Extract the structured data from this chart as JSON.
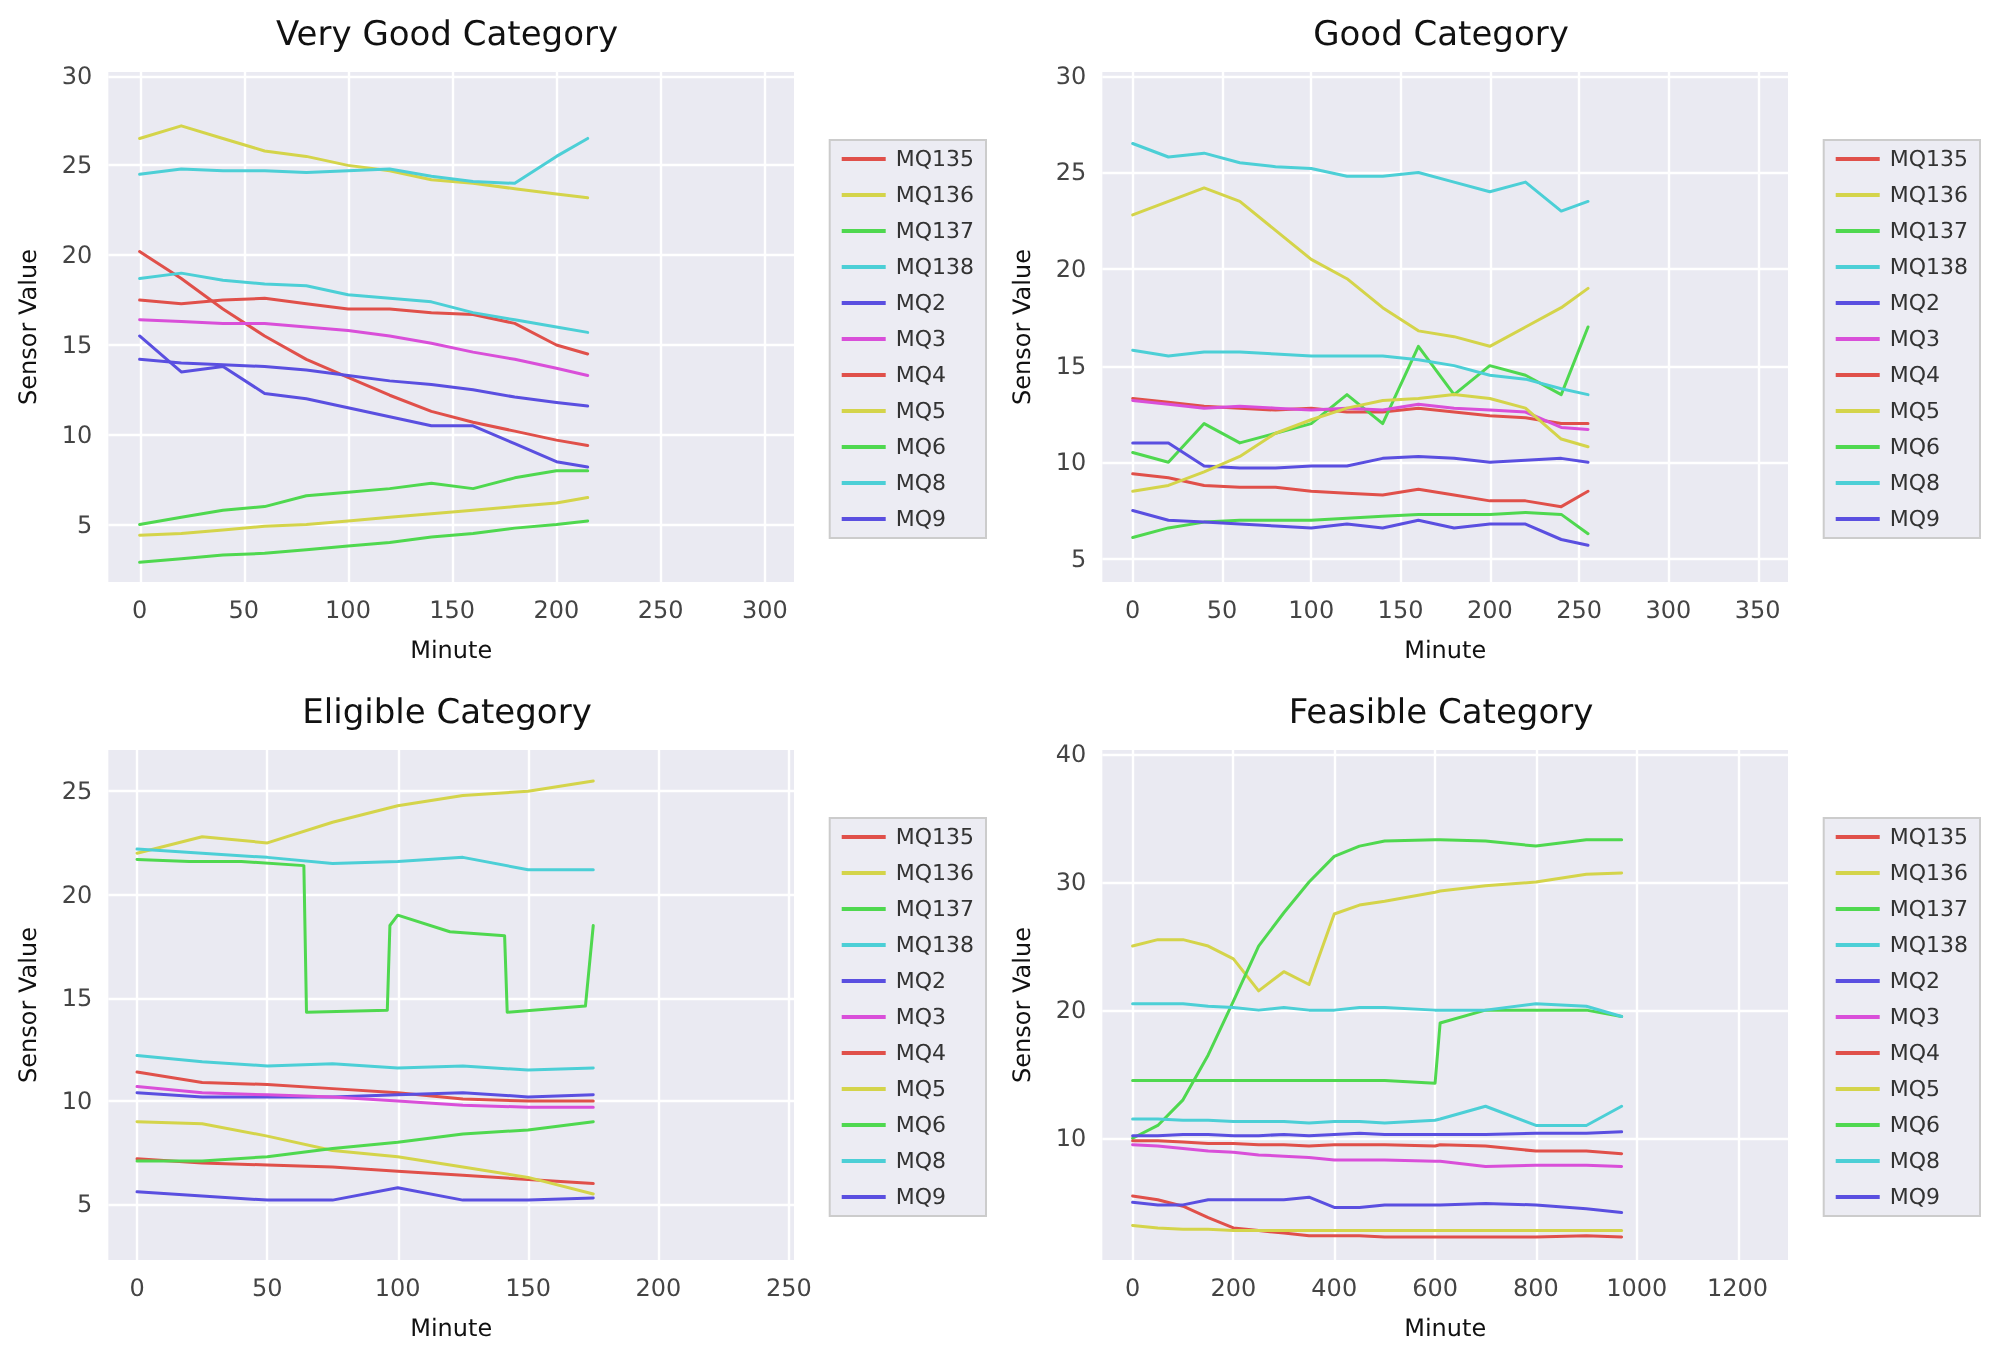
{
  "chart_data": [
    {
      "type": "line",
      "title": "Very Good Category",
      "xlabel": "Minute",
      "ylabel": "Sensor Value",
      "xlim": [
        -15,
        314
      ],
      "xticks": [
        0,
        50,
        100,
        150,
        200,
        250,
        300
      ],
      "ylim": [
        1.8,
        30.2
      ],
      "yticks": [
        5,
        10,
        15,
        20,
        25,
        30
      ],
      "grid": true,
      "legend": "right",
      "x": [
        0,
        20,
        40,
        60,
        80,
        100,
        120,
        140,
        160,
        180,
        200,
        215
      ],
      "series": [
        {
          "name": "MQ135",
          "color": "#e0504a",
          "values": [
            20.2,
            18.7,
            17,
            15.5,
            14.2,
            13.2,
            12.2,
            11.3,
            10.7,
            10.2,
            9.7,
            9.4
          ]
        },
        {
          "name": "MQ136",
          "color": "#d4d44a",
          "values": [
            26.5,
            27.2,
            26.5,
            25.8,
            25.5,
            25,
            24.7,
            24.2,
            24,
            23.7,
            23.4,
            23.2
          ]
        },
        {
          "name": "MQ137",
          "color": "#4fd84f",
          "values": [
            2.9,
            3.1,
            3.3,
            3.4,
            3.6,
            3.8,
            4,
            4.3,
            4.5,
            4.8,
            5,
            5.2
          ]
        },
        {
          "name": "MQ138",
          "color": "#4ccfd6",
          "values": [
            24.5,
            24.8,
            24.7,
            24.7,
            24.6,
            24.7,
            24.8,
            24.4,
            24.1,
            24,
            25.5,
            26.5
          ]
        },
        {
          "name": "MQ2",
          "color": "#5a4fe0",
          "values": [
            14.2,
            14,
            13.9,
            13.8,
            13.6,
            13.3,
            13,
            12.8,
            12.5,
            12.1,
            11.8,
            11.6
          ]
        },
        {
          "name": "MQ3",
          "color": "#d94fd9",
          "values": [
            16.4,
            16.3,
            16.2,
            16.2,
            16,
            15.8,
            15.5,
            15.1,
            14.6,
            14.2,
            13.7,
            13.3
          ]
        },
        {
          "name": "MQ4",
          "color": "#e0504a",
          "values": [
            17.5,
            17.3,
            17.5,
            17.6,
            17.3,
            17,
            17,
            16.8,
            16.7,
            16.2,
            15,
            14.5
          ]
        },
        {
          "name": "MQ5",
          "color": "#d4d44a",
          "values": [
            4.4,
            4.5,
            4.7,
            4.9,
            5,
            5.2,
            5.4,
            5.6,
            5.8,
            6,
            6.2,
            6.5
          ]
        },
        {
          "name": "MQ6",
          "color": "#4fd84f",
          "values": [
            5,
            5.4,
            5.8,
            6,
            6.6,
            6.8,
            7,
            7.3,
            7,
            7.6,
            8,
            8
          ]
        },
        {
          "name": "MQ8",
          "color": "#4ccfd6",
          "values": [
            18.7,
            19,
            18.6,
            18.4,
            18.3,
            17.8,
            17.6,
            17.4,
            16.8,
            16.4,
            16,
            15.7
          ]
        },
        {
          "name": "MQ9",
          "color": "#5a4fe0",
          "values": [
            15.5,
            13.5,
            13.8,
            12.3,
            12,
            11.5,
            11,
            10.5,
            10.5,
            9.5,
            8.5,
            8.2
          ]
        }
      ]
    },
    {
      "type": "line",
      "title": "Good Category",
      "xlabel": "Minute",
      "ylabel": "Sensor Value",
      "xlim": [
        -17,
        367
      ],
      "xticks": [
        0,
        50,
        100,
        150,
        200,
        250,
        300,
        350
      ],
      "ylim": [
        3.8,
        30.2
      ],
      "yticks": [
        5,
        10,
        15,
        20,
        25,
        30
      ],
      "grid": true,
      "legend": "right",
      "x": [
        0,
        20,
        40,
        60,
        80,
        100,
        120,
        140,
        160,
        180,
        200,
        220,
        240,
        255
      ],
      "series": [
        {
          "name": "MQ135",
          "color": "#e0504a",
          "values": [
            13.3,
            13.1,
            12.9,
            12.8,
            12.7,
            12.8,
            12.6,
            12.6,
            12.8,
            12.6,
            12.4,
            12.3,
            12,
            12
          ]
        },
        {
          "name": "MQ136",
          "color": "#d4d44a",
          "values": [
            22.8,
            23.5,
            24.2,
            23.5,
            22,
            20.5,
            19.5,
            18,
            16.8,
            16.5,
            16,
            17,
            18,
            19
          ]
        },
        {
          "name": "MQ137",
          "color": "#4fd84f",
          "values": [
            10.5,
            10,
            12,
            11,
            11.5,
            12,
            13.5,
            12,
            16,
            13.5,
            15,
            14.5,
            13.5,
            17
          ]
        },
        {
          "name": "MQ138",
          "color": "#4ccfd6",
          "values": [
            26.5,
            25.8,
            26,
            25.5,
            25.3,
            25.2,
            24.8,
            24.8,
            25,
            24.5,
            24,
            24.5,
            23,
            23.5
          ]
        },
        {
          "name": "MQ2",
          "color": "#5a4fe0",
          "values": [
            11,
            11,
            9.8,
            9.7,
            9.7,
            9.8,
            9.8,
            10.2,
            10.3,
            10.2,
            10,
            10.1,
            10.2,
            10
          ]
        },
        {
          "name": "MQ3",
          "color": "#d94fd9",
          "values": [
            13.2,
            13,
            12.8,
            12.9,
            12.8,
            12.7,
            12.8,
            12.7,
            13,
            12.8,
            12.7,
            12.6,
            11.8,
            11.7
          ]
        },
        {
          "name": "MQ4",
          "color": "#e0504a",
          "values": [
            9.4,
            9.2,
            8.8,
            8.7,
            8.7,
            8.5,
            8.4,
            8.3,
            8.6,
            8.3,
            8,
            8,
            7.7,
            8.5
          ]
        },
        {
          "name": "MQ5",
          "color": "#d4d44a",
          "values": [
            8.5,
            8.8,
            9.5,
            10.3,
            11.5,
            12.2,
            12.8,
            13.2,
            13.3,
            13.5,
            13.3,
            12.8,
            11.2,
            10.8
          ]
        },
        {
          "name": "MQ6",
          "color": "#4fd84f",
          "values": [
            6.1,
            6.6,
            6.9,
            7,
            7,
            7,
            7.1,
            7.2,
            7.3,
            7.3,
            7.3,
            7.4,
            7.3,
            6.3
          ]
        },
        {
          "name": "MQ8",
          "color": "#4ccfd6",
          "values": [
            15.8,
            15.5,
            15.7,
            15.7,
            15.6,
            15.5,
            15.5,
            15.5,
            15.3,
            15,
            14.5,
            14.3,
            13.8,
            13.5
          ]
        },
        {
          "name": "MQ9",
          "color": "#5a4fe0",
          "values": [
            7.5,
            7,
            6.9,
            6.8,
            6.7,
            6.6,
            6.8,
            6.6,
            7,
            6.6,
            6.8,
            6.8,
            6,
            5.7
          ]
        }
      ]
    },
    {
      "type": "line",
      "title": "Eligible Category",
      "xlabel": "Minute",
      "ylabel": "Sensor Value",
      "xlim": [
        -11,
        252
      ],
      "xticks": [
        0,
        50,
        100,
        150,
        200,
        250
      ],
      "ylim": [
        2.3,
        27
      ],
      "yticks": [
        5,
        10,
        15,
        20,
        25
      ],
      "grid": true,
      "legend": "right",
      "x": [
        0,
        25,
        50,
        75,
        100,
        125,
        150,
        175
      ],
      "series": [
        {
          "name": "MQ135",
          "color": "#e0504a",
          "values": [
            11.4,
            10.9,
            10.8,
            10.6,
            10.4,
            10.1,
            10,
            10
          ]
        },
        {
          "name": "MQ136",
          "color": "#d4d44a",
          "values": [
            22,
            22.8,
            22.5,
            23.5,
            24.3,
            24.8,
            25,
            25.5
          ]
        },
        {
          "name": "MQ137",
          "color": "#4fd84f",
          "x": [
            0,
            20,
            40,
            64,
            65,
            96,
            97,
            100,
            120,
            141,
            142,
            172,
            175
          ],
          "values": [
            21.7,
            21.6,
            21.6,
            21.4,
            14.3,
            14.4,
            18.5,
            19,
            18.2,
            18,
            14.3,
            14.6,
            18.5
          ]
        },
        {
          "name": "MQ138",
          "color": "#4ccfd6",
          "values": [
            22.2,
            22,
            21.8,
            21.5,
            21.6,
            21.8,
            21.2,
            21.2
          ]
        },
        {
          "name": "MQ2",
          "color": "#5a4fe0",
          "values": [
            10.4,
            10.2,
            10.2,
            10.2,
            10.3,
            10.4,
            10.2,
            10.3
          ]
        },
        {
          "name": "MQ3",
          "color": "#d94fd9",
          "values": [
            10.7,
            10.4,
            10.3,
            10.2,
            10,
            9.8,
            9.7,
            9.7
          ]
        },
        {
          "name": "MQ4",
          "color": "#e0504a",
          "values": [
            7.2,
            7,
            6.9,
            6.8,
            6.6,
            6.4,
            6.2,
            6
          ]
        },
        {
          "name": "MQ5",
          "color": "#d4d44a",
          "values": [
            9,
            8.9,
            8.3,
            7.6,
            7.3,
            6.8,
            6.3,
            5.5
          ]
        },
        {
          "name": "MQ6",
          "color": "#4fd84f",
          "values": [
            7.1,
            7.1,
            7.3,
            7.7,
            8,
            8.4,
            8.6,
            9
          ]
        },
        {
          "name": "MQ8",
          "color": "#4ccfd6",
          "values": [
            12.2,
            11.9,
            11.7,
            11.8,
            11.6,
            11.7,
            11.5,
            11.6
          ]
        },
        {
          "name": "MQ9",
          "color": "#5a4fe0",
          "values": [
            5.6,
            5.4,
            5.2,
            5.2,
            5.8,
            5.2,
            5.2,
            5.3
          ]
        }
      ]
    },
    {
      "type": "line",
      "title": "Feasible Category",
      "xlabel": "Minute",
      "ylabel": "Sensor Value",
      "xlim": [
        -60,
        1300
      ],
      "xticks": [
        0,
        200,
        400,
        600,
        800,
        1000,
        1200
      ],
      "ylim": [
        0.5,
        40.3
      ],
      "yticks": [
        10,
        20,
        30,
        40
      ],
      "grid": true,
      "legend": "right",
      "x": [
        0,
        50,
        100,
        150,
        200,
        250,
        300,
        350,
        400,
        450,
        500,
        600,
        610,
        700,
        800,
        900,
        970
      ],
      "series": [
        {
          "name": "MQ135",
          "color": "#e0504a",
          "values": [
            5.5,
            5.2,
            4.7,
            3.8,
            3,
            2.8,
            2.6,
            2.4,
            2.4,
            2.4,
            2.3,
            2.3,
            2.3,
            2.3,
            2.3,
            2.4,
            2.3
          ]
        },
        {
          "name": "MQ136",
          "color": "#d4d44a",
          "values": [
            25,
            25.5,
            25.5,
            25,
            24,
            21.5,
            23,
            22,
            27.5,
            28.2,
            28.5,
            29.2,
            29.3,
            29.7,
            30,
            30.6,
            30.7
          ]
        },
        {
          "name": "MQ137",
          "color": "#4fd84f",
          "values": [
            10,
            11,
            13,
            16.5,
            20.7,
            25,
            27.6,
            30,
            32,
            32.8,
            33.2,
            33.3,
            33.3,
            33.2,
            32.8,
            33.3,
            33.3
          ]
        },
        {
          "name": "MQ138",
          "color": "#4ccfd6",
          "values": [
            11.5,
            11.5,
            11.4,
            11.4,
            11.3,
            11.3,
            11.3,
            11.2,
            11.3,
            11.3,
            11.2,
            11.4,
            11.5,
            12.5,
            11,
            11,
            12.5
          ]
        },
        {
          "name": "MQ2",
          "color": "#5a4fe0",
          "values": [
            10.2,
            10.2,
            10.3,
            10.3,
            10.2,
            10.2,
            10.3,
            10.2,
            10.3,
            10.4,
            10.3,
            10.3,
            10.3,
            10.3,
            10.4,
            10.4,
            10.5
          ]
        },
        {
          "name": "MQ3",
          "color": "#d94fd9",
          "values": [
            9.5,
            9.4,
            9.2,
            9,
            8.9,
            8.7,
            8.6,
            8.5,
            8.3,
            8.3,
            8.3,
            8.2,
            8.2,
            7.8,
            7.9,
            7.9,
            7.8
          ]
        },
        {
          "name": "MQ4",
          "color": "#e0504a",
          "values": [
            9.8,
            9.8,
            9.7,
            9.6,
            9.6,
            9.5,
            9.5,
            9.4,
            9.5,
            9.5,
            9.5,
            9.4,
            9.5,
            9.4,
            9,
            9,
            8.8
          ]
        },
        {
          "name": "MQ5",
          "color": "#d4d44a",
          "values": [
            3.2,
            3,
            2.9,
            2.9,
            2.8,
            2.8,
            2.8,
            2.8,
            2.8,
            2.8,
            2.8,
            2.8,
            2.8,
            2.8,
            2.8,
            2.8,
            2.8
          ]
        },
        {
          "name": "MQ6",
          "color": "#4fd84f",
          "values": [
            14.5,
            14.5,
            14.5,
            14.5,
            14.5,
            14.5,
            14.5,
            14.5,
            14.5,
            14.5,
            14.5,
            14.3,
            19,
            20,
            20,
            20,
            19.5
          ]
        },
        {
          "name": "MQ8",
          "color": "#4ccfd6",
          "values": [
            20.5,
            20.5,
            20.5,
            20.3,
            20.2,
            20,
            20.2,
            20,
            20,
            20.2,
            20.2,
            20,
            20,
            20,
            20.5,
            20.3,
            19.5
          ]
        },
        {
          "name": "MQ9",
          "color": "#5a4fe0",
          "values": [
            5,
            4.8,
            4.8,
            5.2,
            5.2,
            5.2,
            5.2,
            5.4,
            4.6,
            4.6,
            4.8,
            4.8,
            4.8,
            4.9,
            4.8,
            4.5,
            4.2
          ]
        }
      ]
    }
  ]
}
